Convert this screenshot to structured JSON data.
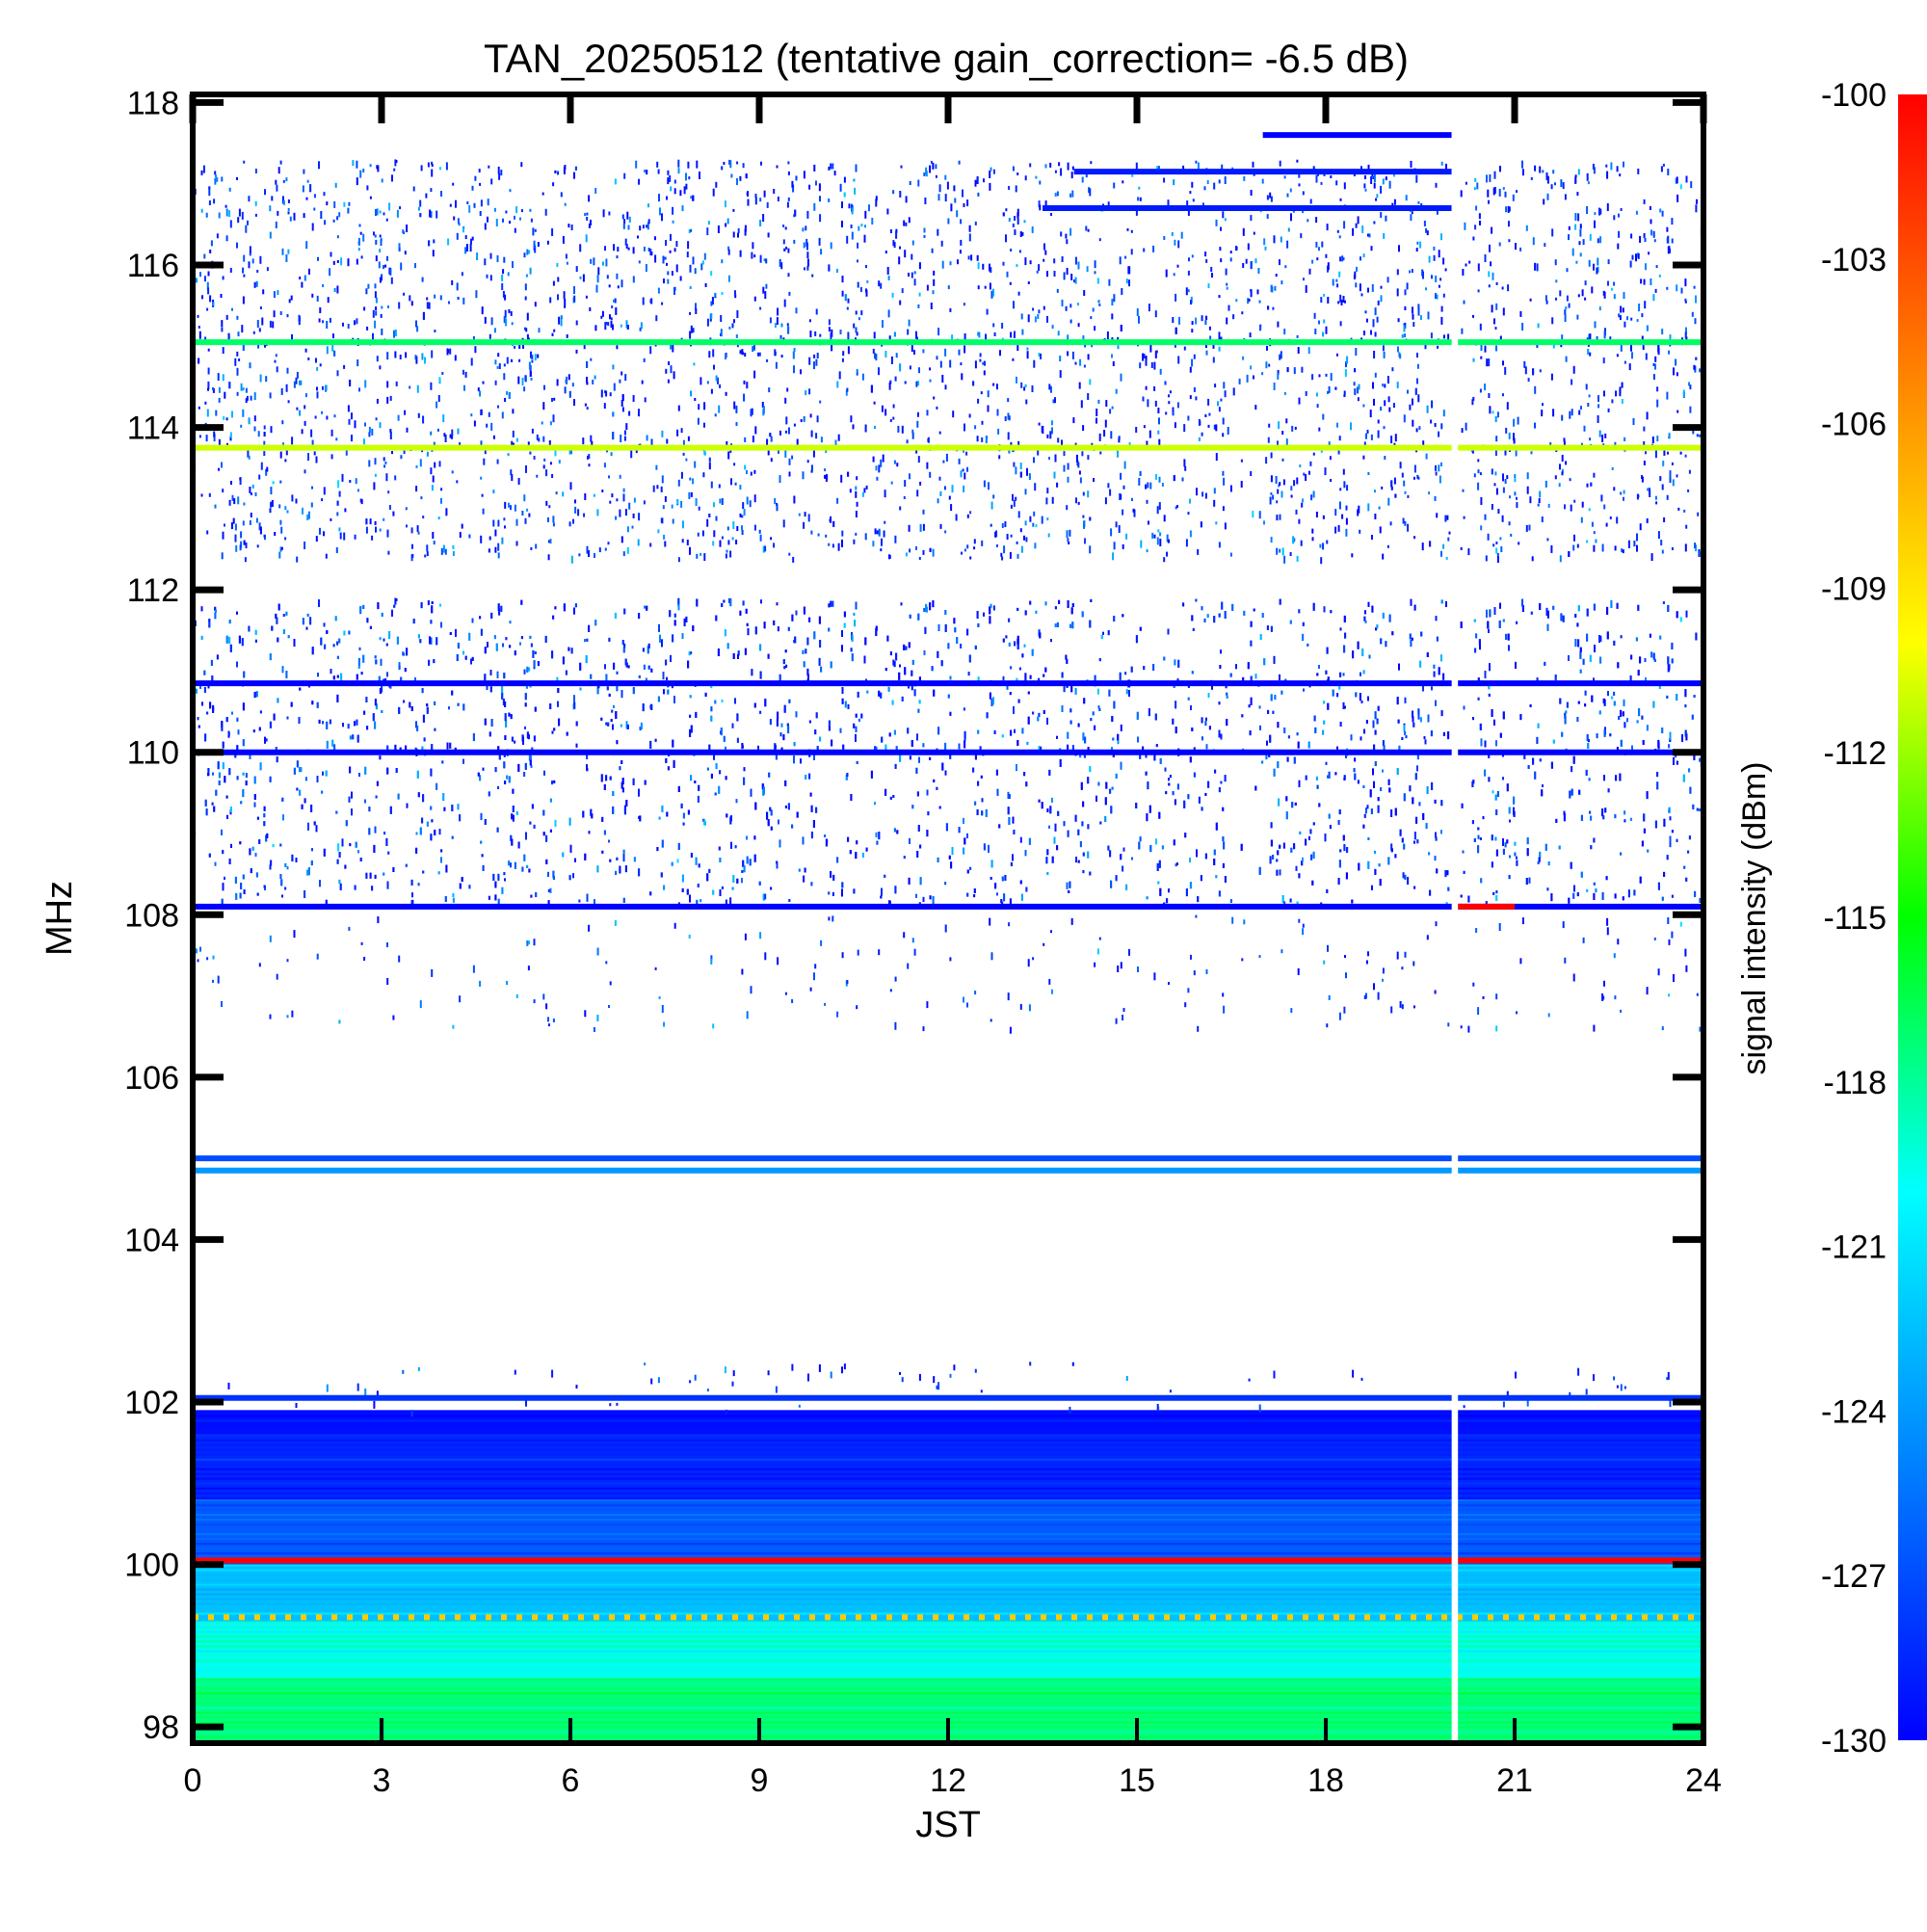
{
  "chart_data": {
    "type": "heatmap",
    "title": "TAN_20250512 (tentative gain_correction= -6.5 dB)",
    "xlabel": "JST",
    "ylabel": "MHz",
    "xlim": [
      0,
      24
    ],
    "ylim": [
      97.8,
      118.1
    ],
    "xticks": [
      "0",
      "3",
      "6",
      "9",
      "12",
      "15",
      "18",
      "21",
      "24"
    ],
    "xtick_values": [
      0,
      3,
      6,
      9,
      12,
      15,
      18,
      21,
      24
    ],
    "yticks": [
      "98",
      "100",
      "102",
      "104",
      "106",
      "108",
      "110",
      "112",
      "114",
      "116",
      "118"
    ],
    "ytick_values": [
      98,
      100,
      102,
      104,
      106,
      108,
      110,
      112,
      114,
      116,
      118
    ],
    "data_gap_hours": [
      20.0,
      20.1
    ],
    "colorbar": {
      "label": "signal intensity (dBm)",
      "range": [
        -130,
        -100
      ],
      "ticks": [
        "-100",
        "-103",
        "-106",
        "-109",
        "-112",
        "-115",
        "-118",
        "-121",
        "-124",
        "-127",
        "-130"
      ],
      "tick_values": [
        -100,
        -103,
        -106,
        -109,
        -112,
        -115,
        -118,
        -121,
        -124,
        -127,
        -130
      ],
      "colormap": [
        "#0000ff",
        "#0080ff",
        "#00ffff",
        "#00ff00",
        "#ffff00",
        "#ff8000",
        "#ff0000"
      ]
    },
    "bands": [
      {
        "from_mhz": 97.8,
        "to_mhz": 98.6,
        "level_dbm": -117.5
      },
      {
        "from_mhz": 98.6,
        "to_mhz": 99.3,
        "level_dbm": -119.5
      },
      {
        "from_mhz": 99.3,
        "to_mhz": 100.0,
        "level_dbm": -122.5
      },
      {
        "from_mhz": 100.0,
        "to_mhz": 100.8,
        "level_dbm": -126.5
      },
      {
        "from_mhz": 100.8,
        "to_mhz": 101.6,
        "level_dbm": -128.5
      },
      {
        "from_mhz": 101.6,
        "to_mhz": 101.9,
        "level_dbm": -129.5
      }
    ],
    "lines": [
      {
        "mhz": 100.05,
        "level_dbm": -100
      },
      {
        "mhz": 99.35,
        "level_dbm": -108,
        "dashed": true
      },
      {
        "mhz": 102.05,
        "level_dbm": -128
      },
      {
        "mhz": 105.0,
        "level_dbm": -127
      },
      {
        "mhz": 104.85,
        "level_dbm": -124
      },
      {
        "mhz": 108.1,
        "level_dbm": -130
      },
      {
        "mhz": 110.0,
        "level_dbm": -130
      },
      {
        "mhz": 110.85,
        "level_dbm": -130
      },
      {
        "mhz": 113.75,
        "level_dbm": -111
      },
      {
        "mhz": 115.05,
        "level_dbm": -117
      },
      {
        "mhz": 116.7,
        "level_dbm": -129,
        "from_hour": 13.5,
        "to_hour": 20.0
      },
      {
        "mhz": 117.15,
        "level_dbm": -129,
        "from_hour": 14.0,
        "to_hour": 20.0
      },
      {
        "mhz": 117.6,
        "level_dbm": -130,
        "from_hour": 17.0,
        "to_hour": 20.0
      },
      {
        "mhz": 108.1,
        "level_dbm": -100,
        "from_hour": 20.1,
        "to_hour": 21.0
      }
    ],
    "noise_regions": [
      {
        "from_mhz": 112.4,
        "to_mhz": 117.3,
        "density": 0.55
      },
      {
        "from_mhz": 108.15,
        "to_mhz": 111.9,
        "density": 0.85
      },
      {
        "from_mhz": 106.6,
        "to_mhz": 108.0,
        "density": 0.12
      },
      {
        "from_mhz": 101.9,
        "to_mhz": 102.5,
        "density": 0.1
      }
    ]
  }
}
